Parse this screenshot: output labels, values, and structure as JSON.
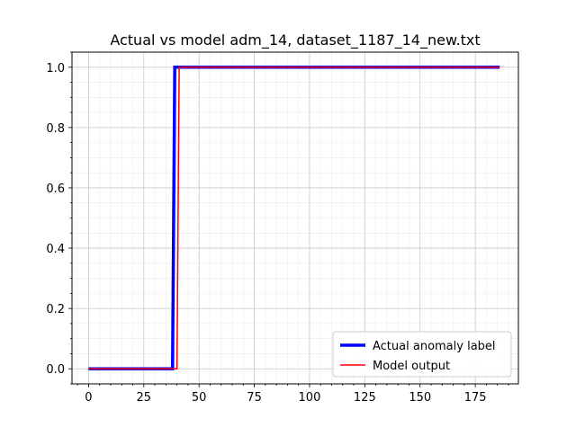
{
  "chart_data": {
    "type": "line",
    "title": "Actual vs model adm_14, dataset_1187_14_new.txt",
    "xlabel": "",
    "ylabel": "",
    "xlim": [
      -7.5,
      194.5
    ],
    "ylim": [
      -0.05,
      1.05
    ],
    "x_ticks": [
      0,
      25,
      50,
      75,
      100,
      125,
      150,
      175
    ],
    "y_ticks": [
      0.0,
      0.2,
      0.4,
      0.6,
      0.8,
      1.0
    ],
    "x_tick_labels": [
      "0",
      "25",
      "50",
      "75",
      "100",
      "125",
      "150",
      "175"
    ],
    "y_tick_labels": [
      "0.0",
      "0.2",
      "0.4",
      "0.6",
      "0.8",
      "1.0"
    ],
    "grid": true,
    "minor_grid": true,
    "legend_position": "lower-right",
    "series": [
      {
        "name": "Actual anomaly label",
        "color": "#0000ff",
        "points": [
          [
            0,
            0
          ],
          [
            38,
            0
          ],
          [
            39,
            1
          ],
          [
            186,
            1
          ]
        ]
      },
      {
        "name": "Model output",
        "color": "#ff0000",
        "points": [
          [
            0,
            0
          ],
          [
            40,
            0
          ],
          [
            41,
            1
          ],
          [
            186,
            1
          ]
        ]
      }
    ]
  }
}
